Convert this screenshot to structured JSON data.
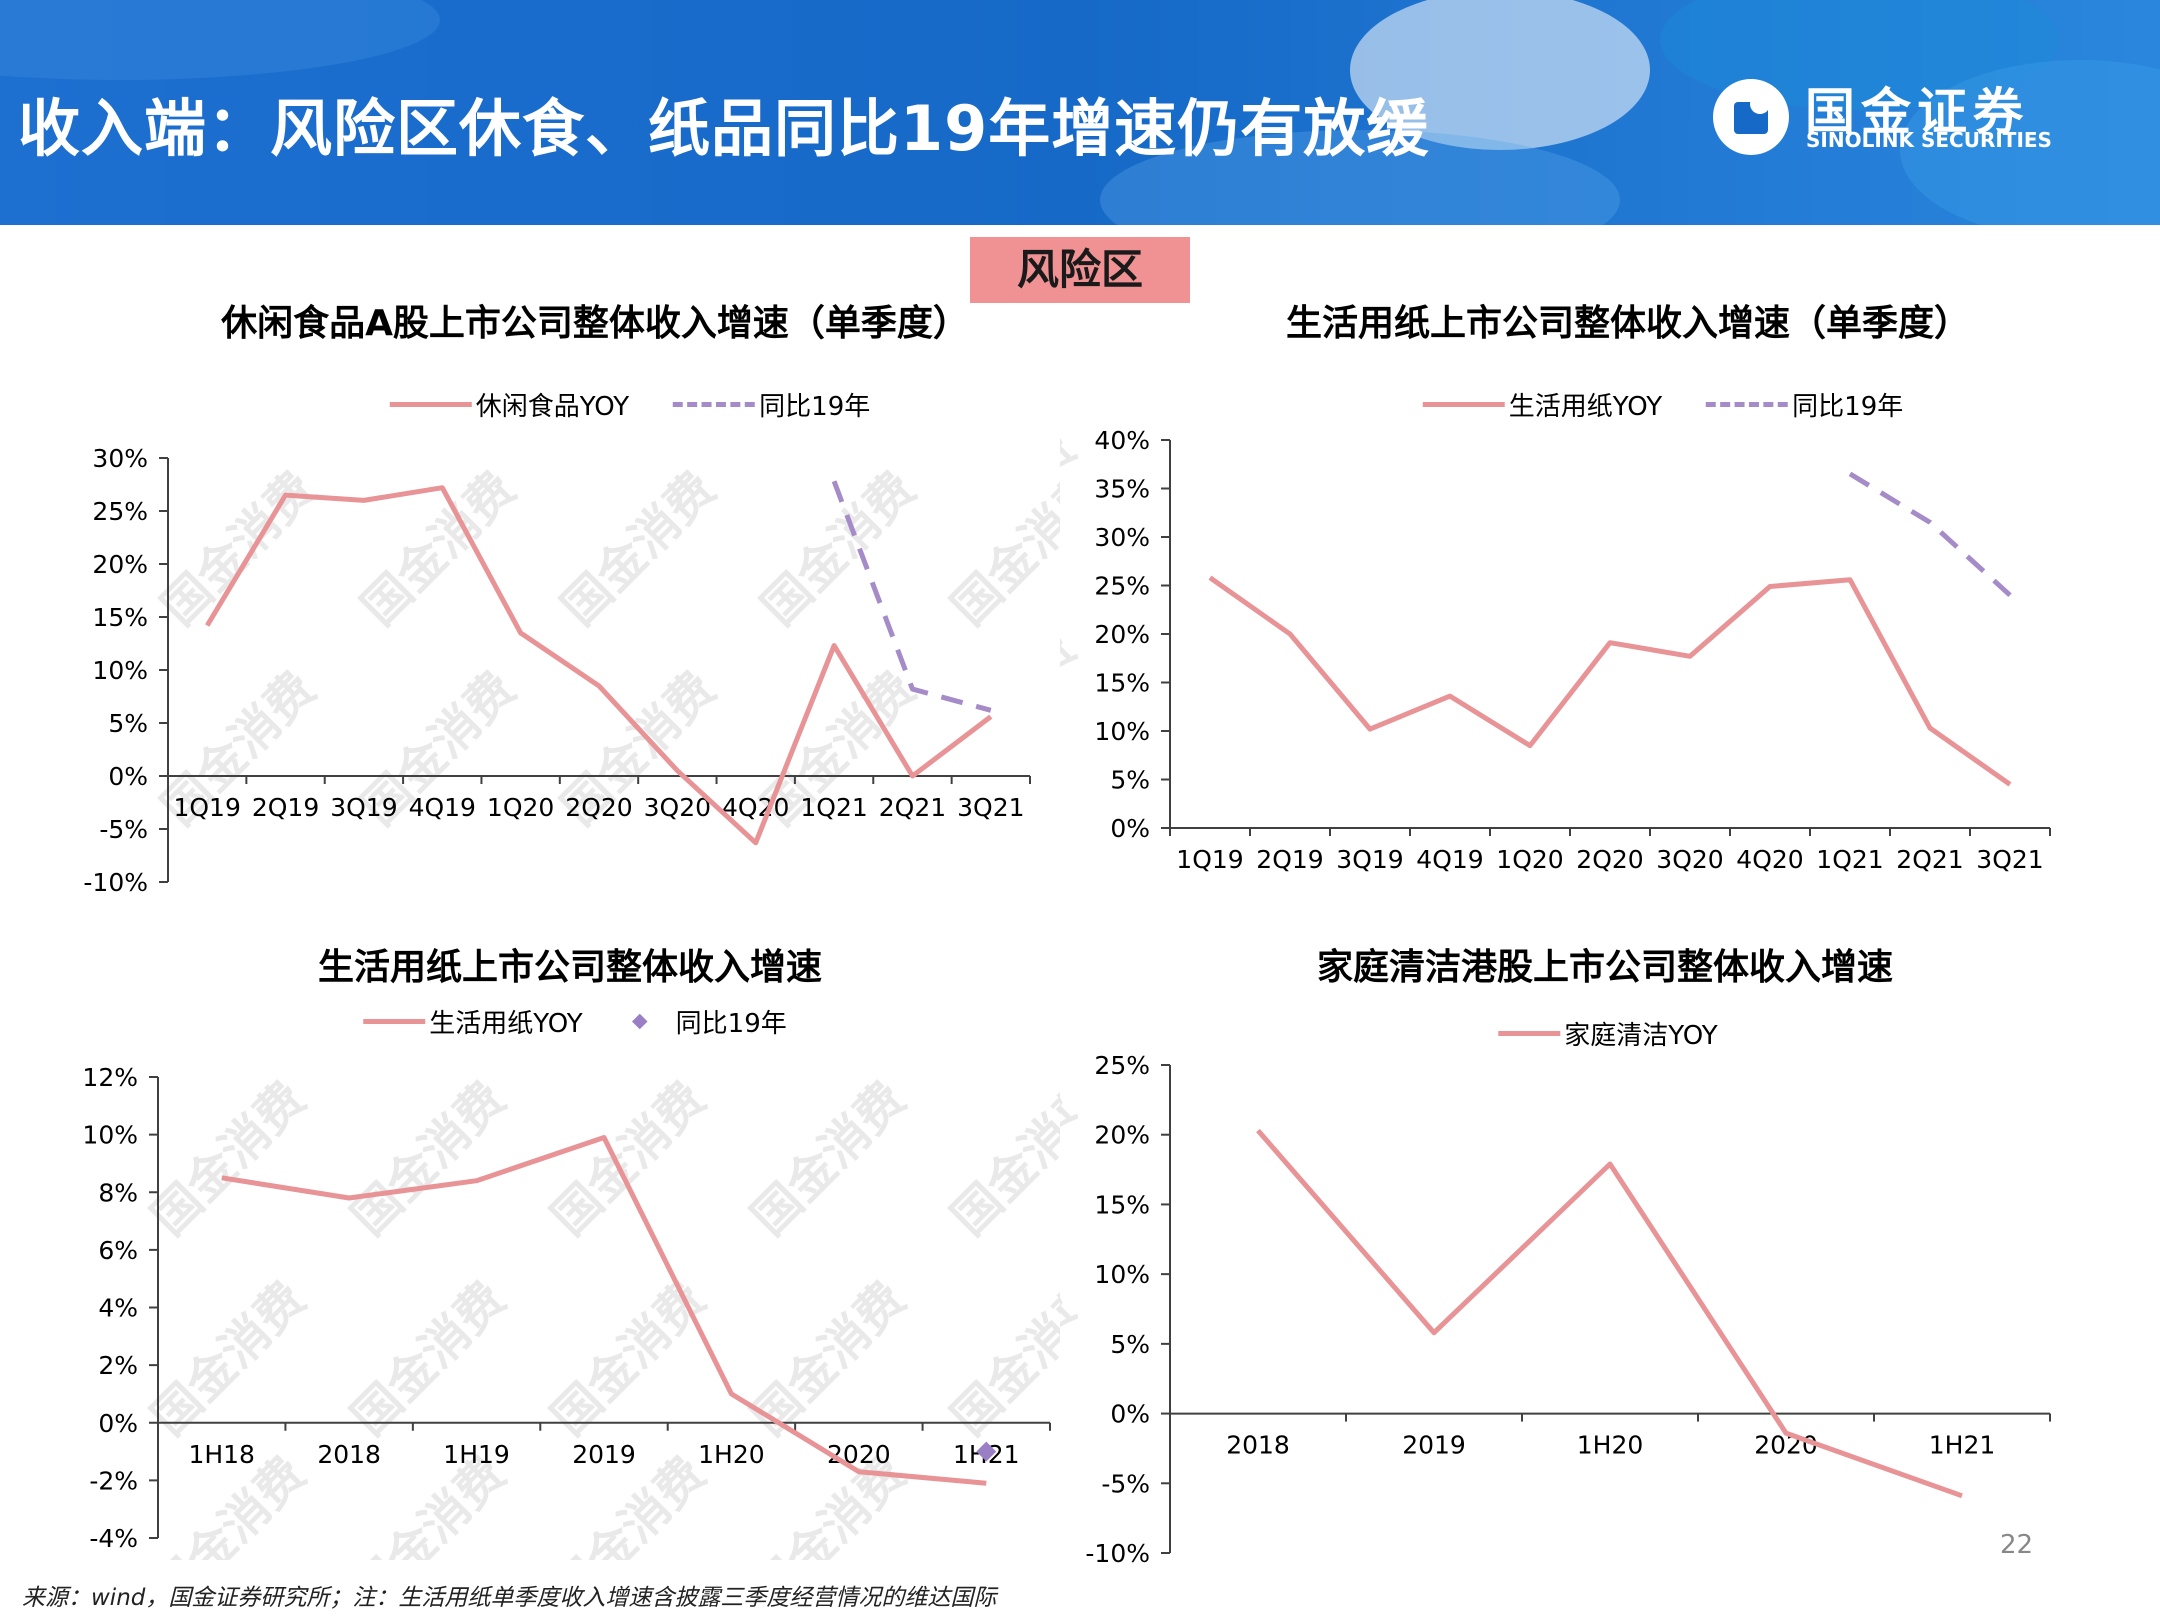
{
  "header": {
    "title": "收入端：风险区休食、纸品同比19年增速仍有放缓",
    "logo_cn": "国金证券",
    "logo_en": "SINOLINK SECURITIES",
    "bg_color": "#1669c7"
  },
  "badge": {
    "label": "风险区",
    "color": "#f09294"
  },
  "watermark": "国金消费",
  "footnote": "来源：wind，国金证券研究所；注：生活用纸单季度收入增速含披露三季度经营情况的维达国际",
  "page_number": "22",
  "chart_data": [
    {
      "type": "line",
      "title": "休闲食品A股上市公司整体收入增速（单季度）",
      "categories": [
        "1Q19",
        "2Q19",
        "3Q19",
        "4Q19",
        "1Q20",
        "2Q20",
        "3Q20",
        "4Q20",
        "1Q21",
        "2Q21",
        "3Q21"
      ],
      "series": [
        {
          "name": "休闲食品YOY",
          "style": "solid",
          "color": "#e89396",
          "values": [
            14.2,
            26.5,
            26.0,
            27.2,
            13.5,
            8.5,
            0.5,
            -6.3,
            12.3,
            0.0,
            5.6
          ]
        },
        {
          "name": "同比19年",
          "style": "dashed",
          "color": "#a58cc8",
          "values": [
            null,
            null,
            null,
            null,
            null,
            null,
            null,
            null,
            27.8,
            8.2,
            6.2
          ]
        }
      ],
      "ylim": [
        -10,
        30
      ],
      "yticks": [
        -10,
        -5,
        0,
        5,
        10,
        15,
        20,
        25,
        30
      ],
      "ytick_labels": [
        "-10%",
        "-5%",
        "0%",
        "5%",
        "10%",
        "15%",
        "20%",
        "25%",
        "30%"
      ],
      "legend": "top"
    },
    {
      "type": "line",
      "title": "生活用纸上市公司整体收入增速（单季度）",
      "categories": [
        "1Q19",
        "2Q19",
        "3Q19",
        "4Q19",
        "1Q20",
        "2Q20",
        "3Q20",
        "4Q20",
        "1Q21",
        "2Q21",
        "3Q21"
      ],
      "series": [
        {
          "name": "生活用纸YOY",
          "style": "solid",
          "color": "#e89396",
          "values": [
            25.8,
            20.0,
            10.2,
            13.6,
            8.5,
            19.1,
            17.7,
            24.9,
            25.6,
            10.3,
            4.5
          ]
        },
        {
          "name": "同比19年",
          "style": "dashed",
          "color": "#a58cc8",
          "values": [
            null,
            null,
            null,
            null,
            null,
            null,
            null,
            null,
            36.5,
            31.5,
            24.0
          ]
        }
      ],
      "ylim": [
        0,
        40
      ],
      "yticks": [
        0,
        5,
        10,
        15,
        20,
        25,
        30,
        35,
        40
      ],
      "ytick_labels": [
        "0%",
        "5%",
        "10%",
        "15%",
        "20%",
        "25%",
        "30%",
        "35%",
        "40%"
      ],
      "legend": "top"
    },
    {
      "type": "line",
      "title": "生活用纸上市公司整体收入增速",
      "categories": [
        "1H18",
        "2018",
        "1H19",
        "2019",
        "1H20",
        "2020",
        "1H21"
      ],
      "series": [
        {
          "name": "生活用纸YOY",
          "style": "solid",
          "color": "#e89396",
          "values": [
            8.5,
            7.8,
            8.4,
            9.9,
            1.0,
            -1.7,
            -2.1
          ]
        },
        {
          "name": "同比19年",
          "style": "marker",
          "color": "#9b7fc4",
          "values": [
            null,
            null,
            null,
            null,
            null,
            null,
            -1.0
          ]
        }
      ],
      "ylim": [
        -4,
        12
      ],
      "yticks": [
        -4,
        -2,
        0,
        2,
        4,
        6,
        8,
        10,
        12
      ],
      "ytick_labels": [
        "-4%",
        "-2%",
        "0%",
        "2%",
        "4%",
        "6%",
        "8%",
        "10%",
        "12%"
      ],
      "legend": "top"
    },
    {
      "type": "line",
      "title": "家庭清洁港股上市公司整体收入增速",
      "categories": [
        "2018",
        "2019",
        "1H20",
        "2020",
        "1H21"
      ],
      "series": [
        {
          "name": "家庭清洁YOY",
          "style": "solid",
          "color": "#e89396",
          "values": [
            20.3,
            5.8,
            17.9,
            -1.4,
            -5.9
          ]
        }
      ],
      "ylim": [
        -10,
        25
      ],
      "yticks": [
        -10,
        -5,
        0,
        5,
        10,
        15,
        20,
        25
      ],
      "ytick_labels": [
        "-10%",
        "-5%",
        "0%",
        "5%",
        "10%",
        "15%",
        "20%",
        "25%"
      ],
      "legend": "top"
    }
  ]
}
